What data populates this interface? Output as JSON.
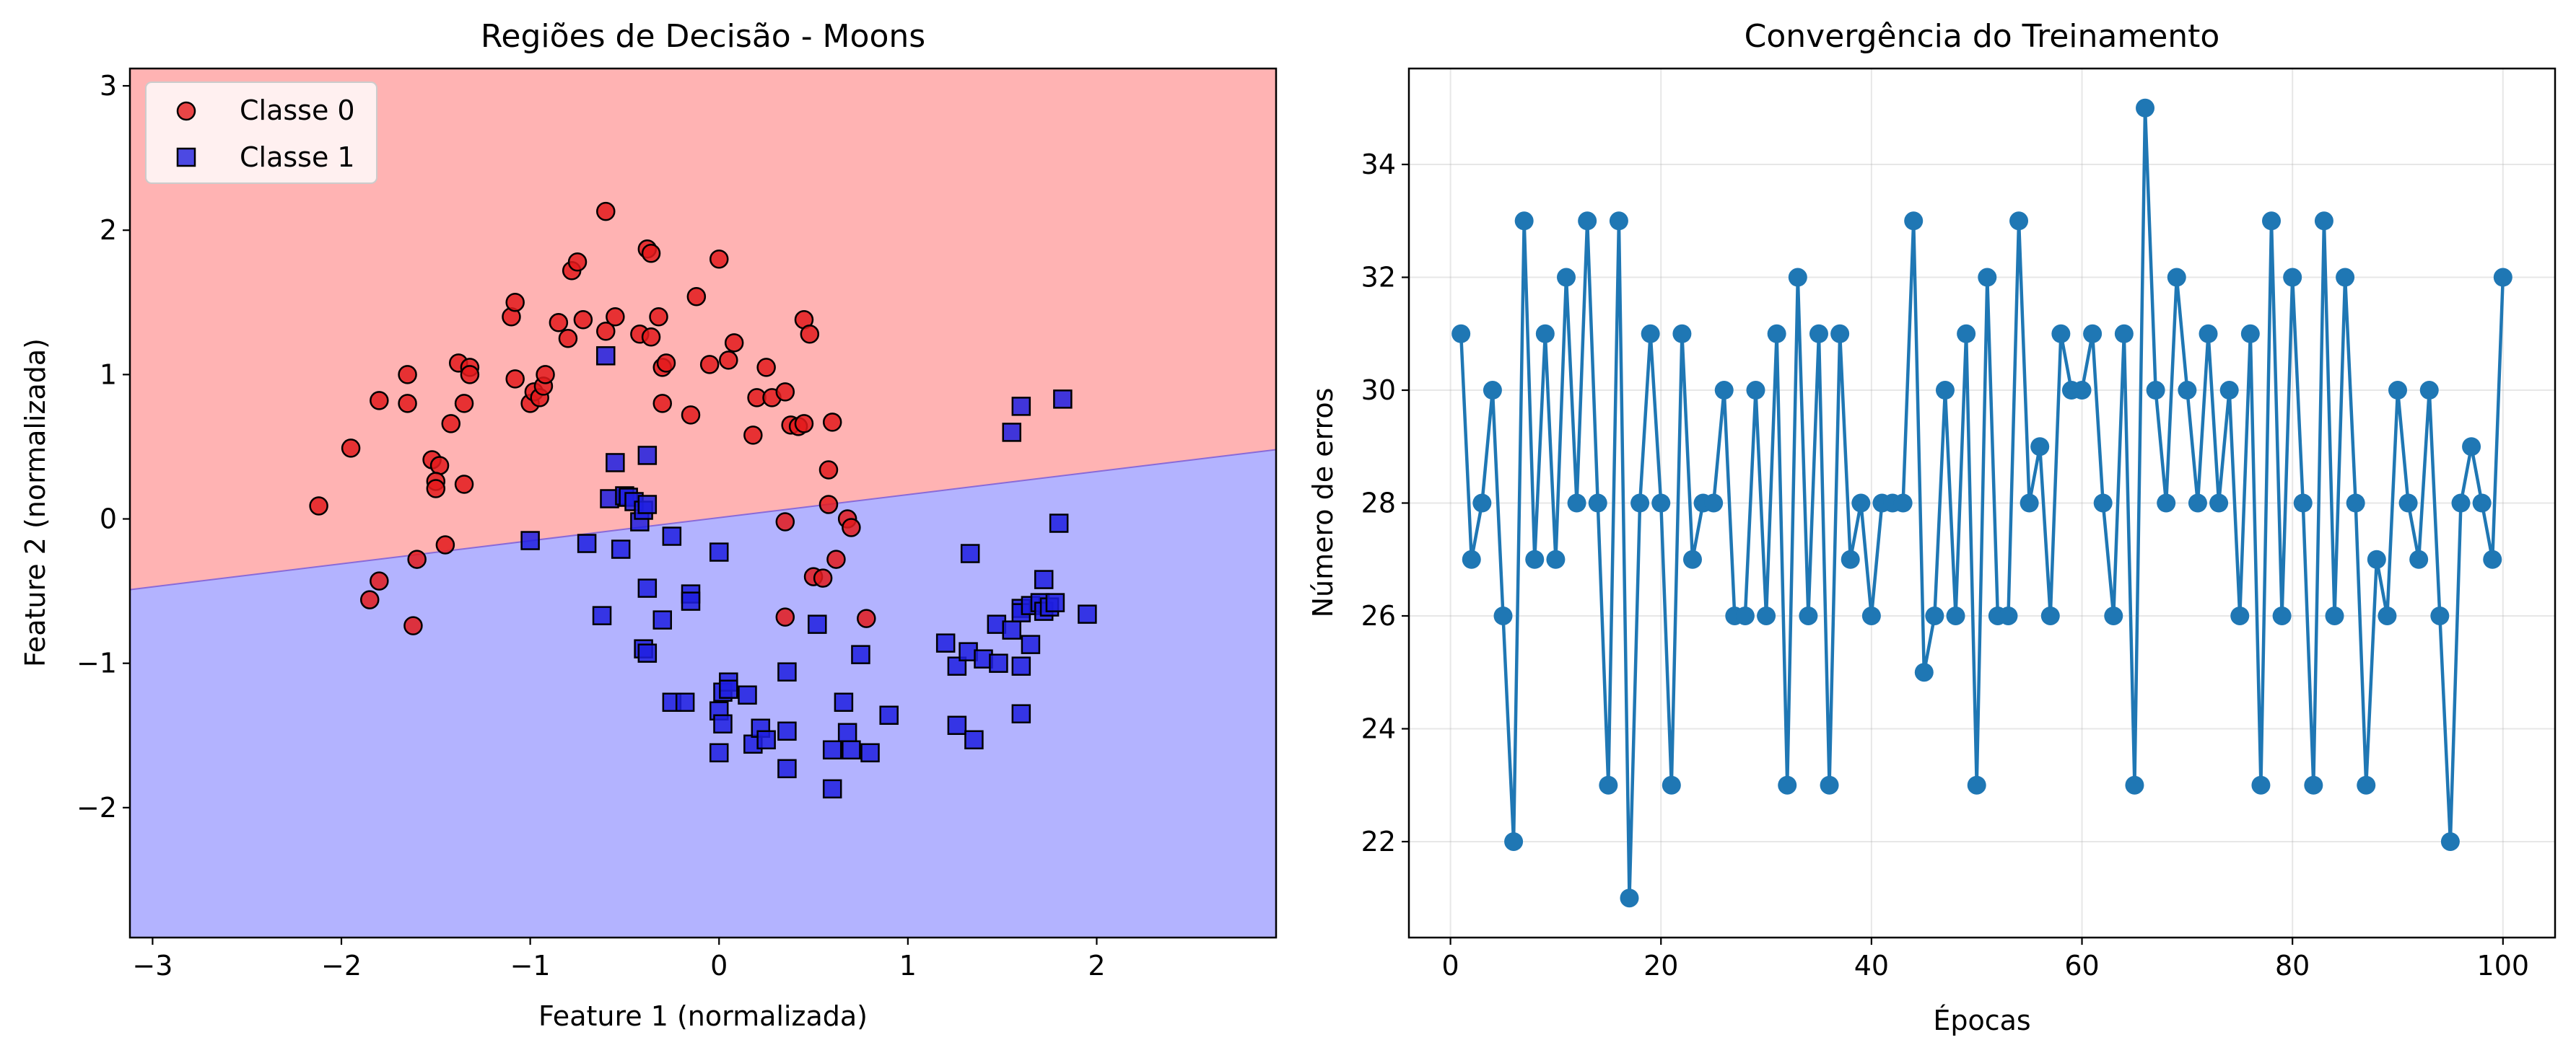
{
  "chart_data": [
    {
      "type": "scatter",
      "title": "Regiões de Decisão - Moons",
      "xlabel": "Feature 1 (normalizada)",
      "ylabel": "Feature 2 (normalizada)",
      "xlim": [
        -3.12,
        2.95
      ],
      "ylim": [
        -2.9,
        3.12
      ],
      "xticks": [
        -3,
        -2,
        -1,
        0,
        1,
        2
      ],
      "yticks": [
        -2,
        -1,
        0,
        1,
        2,
        3
      ],
      "xtick_labels": [
        "−3",
        "−2",
        "−1",
        "0",
        "1",
        "2"
      ],
      "ytick_labels": [
        "−2",
        "−1",
        "0",
        "1",
        "2",
        "3"
      ],
      "grid": false,
      "legend": "upper-left",
      "region_colors": {
        "class0": "#ffb3b3",
        "class1": "#b3b3ff"
      },
      "decision_boundary": {
        "x": [
          -3.12,
          2.95
        ],
        "y": [
          -0.49,
          0.48
        ]
      },
      "series": [
        {
          "name": "Classe 0",
          "marker": "circle",
          "color": "#e31a1c",
          "points": [
            [
              -2.12,
              0.09
            ],
            [
              -1.95,
              0.49
            ],
            [
              -1.8,
              -0.43
            ],
            [
              -1.85,
              -0.56
            ],
            [
              -1.8,
              0.82
            ],
            [
              -1.65,
              1.0
            ],
            [
              -1.65,
              0.8
            ],
            [
              -1.6,
              -0.28
            ],
            [
              -1.62,
              -0.74
            ],
            [
              -1.52,
              0.41
            ],
            [
              -1.48,
              0.37
            ],
            [
              -1.5,
              0.26
            ],
            [
              -1.5,
              0.21
            ],
            [
              -1.45,
              -0.18
            ],
            [
              -1.42,
              0.66
            ],
            [
              -1.38,
              1.08
            ],
            [
              -1.32,
              1.05
            ],
            [
              -1.32,
              1.0
            ],
            [
              -1.35,
              0.8
            ],
            [
              -1.35,
              0.24
            ],
            [
              -1.1,
              1.4
            ],
            [
              -1.08,
              1.5
            ],
            [
              -1.08,
              0.97
            ],
            [
              -1.0,
              0.8
            ],
            [
              -0.98,
              0.88
            ],
            [
              -0.95,
              0.84
            ],
            [
              -0.93,
              0.92
            ],
            [
              -0.92,
              1.0
            ],
            [
              -0.85,
              1.36
            ],
            [
              -0.8,
              1.25
            ],
            [
              -0.78,
              1.72
            ],
            [
              -0.75,
              1.78
            ],
            [
              -0.72,
              1.38
            ],
            [
              -0.6,
              1.3
            ],
            [
              -0.6,
              2.13
            ],
            [
              -0.55,
              1.4
            ],
            [
              -0.42,
              1.28
            ],
            [
              -0.38,
              1.87
            ],
            [
              -0.36,
              1.84
            ],
            [
              -0.36,
              1.26
            ],
            [
              -0.32,
              1.4
            ],
            [
              -0.3,
              1.05
            ],
            [
              -0.28,
              1.08
            ],
            [
              -0.3,
              0.8
            ],
            [
              -0.12,
              1.54
            ],
            [
              -0.15,
              0.72
            ],
            [
              -0.05,
              1.07
            ],
            [
              0.0,
              1.8
            ],
            [
              0.05,
              1.1
            ],
            [
              0.08,
              1.22
            ],
            [
              0.2,
              0.84
            ],
            [
              0.25,
              1.05
            ],
            [
              0.28,
              0.84
            ],
            [
              0.18,
              0.58
            ],
            [
              0.35,
              0.88
            ],
            [
              0.38,
              0.65
            ],
            [
              0.42,
              0.64
            ],
            [
              0.45,
              0.66
            ],
            [
              0.45,
              1.38
            ],
            [
              0.48,
              1.28
            ],
            [
              0.35,
              -0.02
            ],
            [
              0.35,
              -0.68
            ],
            [
              0.5,
              -0.4
            ],
            [
              0.55,
              -0.41
            ],
            [
              0.58,
              0.34
            ],
            [
              0.58,
              0.1
            ],
            [
              0.6,
              0.67
            ],
            [
              0.62,
              -0.28
            ],
            [
              0.68,
              0.0
            ],
            [
              0.7,
              -0.06
            ],
            [
              0.78,
              -0.69
            ]
          ]
        },
        {
          "name": "Classe 1",
          "marker": "square",
          "color": "#1f1fe0",
          "points": [
            [
              -1.0,
              -0.15
            ],
            [
              -0.6,
              1.13
            ],
            [
              -0.58,
              0.14
            ],
            [
              -0.55,
              0.39
            ],
            [
              -0.5,
              0.16
            ],
            [
              -0.48,
              0.15
            ],
            [
              -0.45,
              0.12
            ],
            [
              -0.42,
              -0.02
            ],
            [
              -0.4,
              0.06
            ],
            [
              -0.38,
              0.44
            ],
            [
              -0.38,
              0.1
            ],
            [
              -0.52,
              -0.21
            ],
            [
              -0.7,
              -0.17
            ],
            [
              -0.62,
              -0.67
            ],
            [
              -0.38,
              -0.48
            ],
            [
              -0.3,
              -0.7
            ],
            [
              -0.4,
              -0.9
            ],
            [
              -0.38,
              -0.93
            ],
            [
              -0.25,
              -0.12
            ],
            [
              -0.15,
              -0.52
            ],
            [
              -0.15,
              -0.57
            ],
            [
              -0.25,
              -1.27
            ],
            [
              -0.18,
              -1.27
            ],
            [
              0.0,
              -1.62
            ],
            [
              0.0,
              -1.33
            ],
            [
              0.02,
              -1.42
            ],
            [
              0.02,
              -1.2
            ],
            [
              0.05,
              -1.13
            ],
            [
              0.05,
              -1.18
            ],
            [
              0.0,
              -0.23
            ],
            [
              0.15,
              -1.22
            ],
            [
              0.18,
              -1.56
            ],
            [
              0.22,
              -1.45
            ],
            [
              0.25,
              -1.53
            ],
            [
              0.36,
              -1.47
            ],
            [
              0.36,
              -1.06
            ],
            [
              0.36,
              -1.73
            ],
            [
              0.52,
              -0.73
            ],
            [
              0.6,
              -1.6
            ],
            [
              0.6,
              -1.87
            ],
            [
              0.66,
              -1.27
            ],
            [
              0.68,
              -1.48
            ],
            [
              0.7,
              -1.6
            ],
            [
              0.75,
              -0.94
            ],
            [
              0.8,
              -1.62
            ],
            [
              0.9,
              -1.36
            ],
            [
              1.2,
              -0.86
            ],
            [
              1.26,
              -1.02
            ],
            [
              1.26,
              -1.43
            ],
            [
              1.32,
              -0.92
            ],
            [
              1.33,
              -0.24
            ],
            [
              1.35,
              -1.53
            ],
            [
              1.4,
              -0.97
            ],
            [
              1.47,
              -0.73
            ],
            [
              1.48,
              -1.0
            ],
            [
              1.55,
              -0.77
            ],
            [
              1.6,
              -0.62
            ],
            [
              1.6,
              -0.65
            ],
            [
              1.6,
              -1.02
            ],
            [
              1.6,
              -1.35
            ],
            [
              1.65,
              -0.87
            ],
            [
              1.65,
              -0.6
            ],
            [
              1.7,
              -0.58
            ],
            [
              1.72,
              -0.64
            ],
            [
              1.72,
              -0.42
            ],
            [
              1.75,
              -0.61
            ],
            [
              1.78,
              -0.58
            ],
            [
              1.8,
              -0.03
            ],
            [
              1.55,
              0.6
            ],
            [
              1.6,
              0.78
            ],
            [
              1.82,
              0.83
            ],
            [
              1.95,
              -0.66
            ]
          ]
        }
      ]
    },
    {
      "type": "line",
      "title": "Convergência do Treinamento",
      "xlabel": "Épocas",
      "ylabel": "Número de erros",
      "xlim": [
        -3.95,
        104.95
      ],
      "ylim": [
        20.3,
        35.7
      ],
      "xticks": [
        0,
        20,
        40,
        60,
        80,
        100
      ],
      "yticks": [
        22,
        24,
        26,
        28,
        30,
        32,
        34
      ],
      "xtick_labels": [
        "0",
        "20",
        "40",
        "60",
        "80",
        "100"
      ],
      "ytick_labels": [
        "22",
        "24",
        "26",
        "28",
        "30",
        "32",
        "34"
      ],
      "grid": true,
      "marker": "circle",
      "color": "#1f77b4",
      "x_start": 1,
      "values": [
        31,
        27,
        28,
        30,
        26,
        22,
        33,
        27,
        31,
        27,
        32,
        28,
        33,
        28,
        23,
        33,
        21,
        28,
        31,
        28,
        23,
        31,
        27,
        28,
        28,
        30,
        26,
        26,
        30,
        26,
        31,
        23,
        32,
        26,
        31,
        23,
        31,
        27,
        28,
        26,
        28,
        28,
        28,
        33,
        25,
        26,
        30,
        26,
        31,
        23,
        32,
        26,
        26,
        33,
        28,
        29,
        26,
        31,
        30,
        30,
        31,
        28,
        26,
        31,
        23,
        35,
        30,
        28,
        32,
        30,
        28,
        31,
        28,
        30,
        26,
        31,
        23,
        33,
        26,
        32,
        28,
        23,
        33,
        26,
        32,
        28,
        23,
        27,
        26,
        30,
        28,
        27,
        30,
        26,
        22,
        28,
        29,
        28,
        27,
        32
      ]
    }
  ]
}
